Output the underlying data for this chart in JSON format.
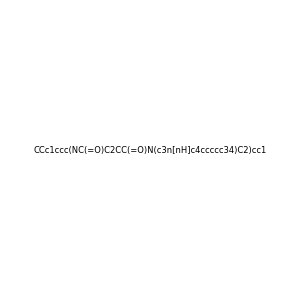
{
  "smiles": "CCc1ccc(NC(=O)C2CC(=O)N(c3n[nH]c4ccccc34)C2)cc1",
  "image_size": 300,
  "background_color": "#f0f0f0",
  "bond_color": "#000000",
  "atom_colors": {
    "N": "#0000ff",
    "O": "#ff0000",
    "H_on_N": "#008080"
  },
  "title": "",
  "dpi": 100
}
